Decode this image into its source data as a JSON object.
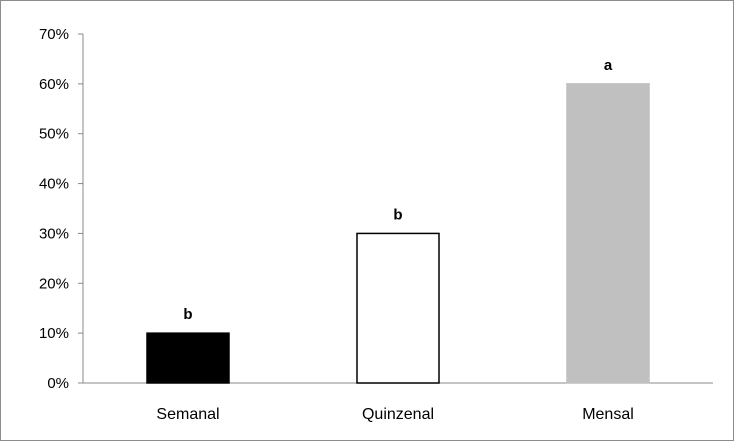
{
  "chart_data": {
    "type": "bar",
    "categories": [
      "Semanal",
      "Quinzenal",
      "Mensal"
    ],
    "values": [
      0.1,
      0.3,
      0.6
    ],
    "value_labels": [
      "b",
      "b",
      "a"
    ],
    "bar_colors": [
      "#000000",
      "#ffffff",
      "#c0c0c0"
    ],
    "bar_outline_colors": [
      "#000000",
      "#000000",
      "#c0c0c0"
    ],
    "y_tick_labels": [
      "0%",
      "10%",
      "20%",
      "30%",
      "40%",
      "50%",
      "60%",
      "70%"
    ],
    "y_ticks": [
      0,
      0.1,
      0.2,
      0.3,
      0.4,
      0.5,
      0.6,
      0.7
    ],
    "ylim": [
      0,
      0.7
    ],
    "grid": false,
    "legend": "none",
    "title": "",
    "xlabel": "",
    "ylabel": ""
  }
}
